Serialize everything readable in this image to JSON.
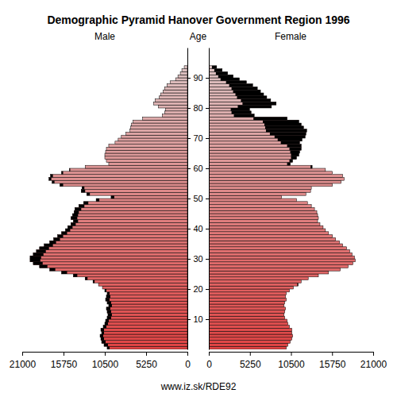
{
  "chart_data": {
    "type": "pyramid",
    "orientation": "horizontal",
    "title": "Demographic Pyramid Hanover Government Region 1996",
    "y_label": "Age",
    "source": "www.iz.sk/RDE92",
    "y": [
      0,
      1,
      2,
      3,
      4,
      5,
      6,
      7,
      8,
      9,
      10,
      11,
      12,
      13,
      14,
      15,
      16,
      17,
      18,
      19,
      20,
      21,
      22,
      23,
      24,
      25,
      26,
      27,
      28,
      29,
      30,
      31,
      32,
      33,
      34,
      35,
      36,
      37,
      38,
      39,
      40,
      41,
      42,
      43,
      44,
      45,
      46,
      47,
      48,
      49,
      50,
      51,
      52,
      53,
      54,
      55,
      56,
      57,
      58,
      59,
      60,
      61,
      62,
      63,
      64,
      65,
      66,
      67,
      68,
      69,
      70,
      71,
      72,
      73,
      74,
      75,
      76,
      77,
      78,
      79,
      80,
      81,
      82,
      83,
      84,
      85,
      86,
      87,
      88,
      89,
      90,
      91,
      92,
      93
    ],
    "series": [
      {
        "name": "Male",
        "values": [
          10200,
          10600,
          10900,
          11000,
          11100,
          10900,
          11000,
          10700,
          10500,
          10400,
          10200,
          10100,
          10200,
          10300,
          10000,
          10200,
          10400,
          10300,
          10200,
          10500,
          10800,
          11300,
          12000,
          13000,
          14500,
          16000,
          17500,
          18800,
          19600,
          20000,
          20000,
          19600,
          19200,
          18800,
          18200,
          17500,
          17000,
          16500,
          16000,
          15500,
          15200,
          14800,
          14500,
          14800,
          14600,
          14400,
          14300,
          13800,
          13200,
          11600,
          9700,
          12800,
          13500,
          13400,
          16200,
          17200,
          17600,
          17400,
          16000,
          15000,
          13000,
          10000,
          10300,
          10500,
          10500,
          10400,
          10300,
          10000,
          9200,
          8800,
          8400,
          7800,
          7300,
          7200,
          7100,
          6900,
          5700,
          3200,
          2900,
          2800,
          3700,
          4300,
          4100,
          3600,
          3400,
          3100,
          2900,
          2600,
          2200,
          1500,
          1200,
          900,
          700,
          400
        ]
      },
      {
        "name": "Female",
        "values": [
          9900,
          10100,
          10400,
          10600,
          10700,
          10600,
          10600,
          10300,
          10100,
          10000,
          9700,
          9600,
          9700,
          9800,
          9600,
          9700,
          9900,
          9800,
          9900,
          10300,
          10800,
          11400,
          11800,
          12700,
          14000,
          15300,
          16800,
          17800,
          18400,
          18700,
          18600,
          18300,
          18000,
          17600,
          17100,
          16700,
          16200,
          15800,
          15300,
          14900,
          14600,
          14200,
          13900,
          14000,
          13900,
          13800,
          13500,
          13100,
          12600,
          11200,
          9300,
          12400,
          13000,
          13100,
          15800,
          16900,
          17300,
          17100,
          15800,
          14900,
          13200,
          10400,
          10700,
          11200,
          11500,
          11600,
          11800,
          11800,
          11600,
          11900,
          12300,
          12400,
          12500,
          12100,
          11800,
          11500,
          10000,
          5800,
          5400,
          5200,
          8000,
          8600,
          7900,
          7400,
          7000,
          6600,
          6200,
          5600,
          4800,
          3900,
          3100,
          2400,
          1700,
          1000
        ]
      }
    ],
    "xlim": [
      0,
      21000
    ],
    "xticks": [
      0,
      5250,
      10500,
      15750,
      21000
    ],
    "ylim": [
      0,
      100
    ],
    "yticks": [
      10,
      20,
      30,
      40,
      50,
      60,
      70,
      80,
      90
    ]
  }
}
